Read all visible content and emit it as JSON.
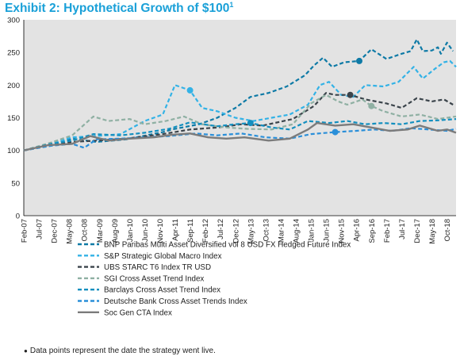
{
  "title": {
    "main": "Exhibit 2: Hypothetical Growth of $100",
    "sup": "1"
  },
  "footnote": "Data points represent the date the strategy went live.",
  "chart_data": {
    "type": "line",
    "grid": false,
    "background": "#e3e3e3",
    "ylim": [
      0,
      300
    ],
    "yticks": [
      0,
      50,
      100,
      150,
      200,
      250,
      300
    ],
    "x_start": "Feb-07",
    "x_end": "Jan-19",
    "xticks": [
      "Feb-07",
      "Jul-07",
      "Dec-07",
      "May-08",
      "Oct-08",
      "Mar-09",
      "Aug-09",
      "Jan-10",
      "Jun-10",
      "Nov-10",
      "Apr-11",
      "Sep-11",
      "Feb-12",
      "Jul-12",
      "Dec-12",
      "May-13",
      "Oct-13",
      "Mar-14",
      "Aug-14",
      "Jan-15",
      "Jun-15",
      "Nov-15",
      "Apr-16",
      "Sep-16",
      "Feb-17",
      "Jul-17",
      "Dec-17",
      "May-18",
      "Oct-18"
    ],
    "legend_position": "bottom",
    "series": [
      {
        "name": "BNP Paribas Multi Asset Diversified vol 8 USD FX Hedged Future Index",
        "color": "#0e7aa6",
        "dash": true,
        "live": "May-16",
        "points": [
          [
            "Feb-07",
            100
          ],
          [
            "Oct-07",
            108
          ],
          [
            "Jun-08",
            118
          ],
          [
            "Feb-09",
            113
          ],
          [
            "Dec-09",
            117
          ],
          [
            "Dec-10",
            128
          ],
          [
            "Mar-11",
            132
          ],
          [
            "Dec-11",
            140
          ],
          [
            "Jun-12",
            150
          ],
          [
            "Dec-12",
            165
          ],
          [
            "May-13",
            182
          ],
          [
            "Nov-13",
            188
          ],
          [
            "May-14",
            198
          ],
          [
            "Nov-14",
            215
          ],
          [
            "Feb-15",
            230
          ],
          [
            "May-15",
            242
          ],
          [
            "Aug-15",
            228
          ],
          [
            "Dec-15",
            235
          ],
          [
            "May-16",
            237
          ],
          [
            "Sep-16",
            255
          ],
          [
            "Feb-17",
            240
          ],
          [
            "Jul-17",
            248
          ],
          [
            "Oct-17",
            252
          ],
          [
            "Dec-17",
            270
          ],
          [
            "Feb-18",
            252
          ],
          [
            "May-18",
            253
          ],
          [
            "Jul-18",
            258
          ],
          [
            "Aug-18",
            248
          ],
          [
            "Oct-18",
            265
          ],
          [
            "Dec-18",
            252
          ]
        ]
      },
      {
        "name": "S&P Strategic Global Macro Index",
        "color": "#33b2e6",
        "dash": true,
        "live": "Sep-11",
        "points": [
          [
            "Feb-07",
            100
          ],
          [
            "Nov-07",
            110
          ],
          [
            "Jun-08",
            120
          ],
          [
            "Feb-09",
            122
          ],
          [
            "Oct-09",
            125
          ],
          [
            "Jun-10",
            145
          ],
          [
            "Dec-10",
            155
          ],
          [
            "Apr-11",
            200
          ],
          [
            "Sep-11",
            192
          ],
          [
            "Jan-12",
            165
          ],
          [
            "Jun-12",
            160
          ],
          [
            "Dec-12",
            150
          ],
          [
            "Jun-13",
            145
          ],
          [
            "Dec-13",
            150
          ],
          [
            "Jun-14",
            155
          ],
          [
            "Dec-14",
            170
          ],
          [
            "Apr-15",
            200
          ],
          [
            "Jul-15",
            205
          ],
          [
            "Nov-15",
            185
          ],
          [
            "Mar-16",
            182
          ],
          [
            "Jul-16",
            200
          ],
          [
            "Jan-17",
            198
          ],
          [
            "Jun-17",
            205
          ],
          [
            "Nov-17",
            228
          ],
          [
            "Feb-18",
            210
          ],
          [
            "Jun-18",
            225
          ],
          [
            "Sep-18",
            235
          ],
          [
            "Nov-18",
            237
          ],
          [
            "Jan-19",
            228
          ]
        ]
      },
      {
        "name": "UBS STARC T6 Index TR USD",
        "color": "#3b444b",
        "dash": true,
        "live": "Feb-16",
        "points": [
          [
            "Feb-07",
            100
          ],
          [
            "Nov-07",
            108
          ],
          [
            "Jun-08",
            113
          ],
          [
            "Feb-09",
            115
          ],
          [
            "Dec-09",
            118
          ],
          [
            "Dec-10",
            125
          ],
          [
            "Sep-11",
            132
          ],
          [
            "Jun-12",
            135
          ],
          [
            "Feb-13",
            140
          ],
          [
            "Sep-13",
            138
          ],
          [
            "Jul-14",
            148
          ],
          [
            "Feb-15",
            168
          ],
          [
            "Jun-15",
            188
          ],
          [
            "Sep-15",
            185
          ],
          [
            "Feb-16",
            185
          ],
          [
            "Jul-16",
            178
          ],
          [
            "Feb-17",
            172
          ],
          [
            "Jul-17",
            165
          ],
          [
            "Dec-17",
            180
          ],
          [
            "May-18",
            175
          ],
          [
            "Sep-18",
            178
          ],
          [
            "Dec-18",
            170
          ]
        ]
      },
      {
        "name": "SGI Cross Asset Trend Index",
        "color": "#8fb0a3",
        "dash": true,
        "live": "Sep-16",
        "points": [
          [
            "Feb-07",
            100
          ],
          [
            "Nov-07",
            112
          ],
          [
            "Jun-08",
            123
          ],
          [
            "Jan-09",
            152
          ],
          [
            "Jun-09",
            145
          ],
          [
            "Jan-10",
            148
          ],
          [
            "Jun-10",
            140
          ],
          [
            "Jan-11",
            145
          ],
          [
            "Jul-11",
            152
          ],
          [
            "Jan-12",
            140
          ],
          [
            "Sep-12",
            135
          ],
          [
            "Apr-13",
            133
          ],
          [
            "Dec-13",
            132
          ],
          [
            "Jul-14",
            140
          ],
          [
            "Jan-15",
            172
          ],
          [
            "Jun-15",
            185
          ],
          [
            "Oct-15",
            175
          ],
          [
            "Jan-16",
            170
          ],
          [
            "Jun-16",
            178
          ],
          [
            "Sep-16",
            168
          ],
          [
            "Jan-17",
            160
          ],
          [
            "Jul-17",
            152
          ],
          [
            "Jan-18",
            155
          ],
          [
            "Jul-18",
            148
          ],
          [
            "Jan-19",
            152
          ]
        ]
      },
      {
        "name": "Barclays Cross Asset Trend Index",
        "color": "#138fbf",
        "dash": true,
        "live": "May-13",
        "points": [
          [
            "Feb-07",
            100
          ],
          [
            "Nov-07",
            110
          ],
          [
            "Jun-08",
            115
          ],
          [
            "Jan-09",
            125
          ],
          [
            "Oct-09",
            123
          ],
          [
            "Jun-10",
            127
          ],
          [
            "Feb-11",
            133
          ],
          [
            "Sep-11",
            143
          ],
          [
            "Jun-12",
            137
          ],
          [
            "Dec-12",
            140
          ],
          [
            "May-13",
            142
          ],
          [
            "Dec-13",
            135
          ],
          [
            "Jun-14",
            132
          ],
          [
            "Dec-14",
            145
          ],
          [
            "Jul-15",
            142
          ],
          [
            "Jan-16",
            145
          ],
          [
            "Jul-16",
            140
          ],
          [
            "Jan-17",
            142
          ],
          [
            "Jul-17",
            140
          ],
          [
            "Jan-18",
            145
          ],
          [
            "Jul-18",
            146
          ],
          [
            "Jan-19",
            148
          ]
        ]
      },
      {
        "name": "Deutsche Bank Cross Asset Trends Index",
        "color": "#2a8fd9",
        "dash": true,
        "live": "Sep-15",
        "points": [
          [
            "Feb-07",
            100
          ],
          [
            "Nov-07",
            107
          ],
          [
            "Jun-08",
            110
          ],
          [
            "Oct-08",
            104
          ],
          [
            "Feb-09",
            117
          ],
          [
            "Oct-09",
            118
          ],
          [
            "Jun-10",
            120
          ],
          [
            "Feb-11",
            122
          ],
          [
            "Nov-11",
            126
          ],
          [
            "Jun-12",
            123
          ],
          [
            "Feb-13",
            126
          ],
          [
            "Oct-13",
            120
          ],
          [
            "Jun-14",
            118
          ],
          [
            "Jan-15",
            125
          ],
          [
            "Sep-15",
            128
          ],
          [
            "Apr-16",
            130
          ],
          [
            "Oct-16",
            132
          ],
          [
            "Apr-17",
            130
          ],
          [
            "Oct-17",
            134
          ],
          [
            "Apr-18",
            132
          ],
          [
            "Oct-18",
            130
          ],
          [
            "Jan-19",
            133
          ]
        ]
      },
      {
        "name": "Soc Gen CTA Index",
        "color": "#7b7b7b",
        "dash": false,
        "live": null,
        "points": [
          [
            "Feb-07",
            100
          ],
          [
            "Oct-07",
            108
          ],
          [
            "Jun-08",
            110
          ],
          [
            "Dec-08",
            122
          ],
          [
            "Jun-09",
            115
          ],
          [
            "Jan-10",
            118
          ],
          [
            "Sep-10",
            120
          ],
          [
            "Mar-11",
            124
          ],
          [
            "Sep-11",
            126
          ],
          [
            "Mar-12",
            120
          ],
          [
            "Sep-12",
            118
          ],
          [
            "Mar-13",
            120
          ],
          [
            "Nov-13",
            115
          ],
          [
            "Jun-14",
            118
          ],
          [
            "Dec-14",
            132
          ],
          [
            "Mar-15",
            142
          ],
          [
            "Sep-15",
            138
          ],
          [
            "Mar-16",
            140
          ],
          [
            "Sep-16",
            135
          ],
          [
            "Mar-17",
            130
          ],
          [
            "Sep-17",
            132
          ],
          [
            "Jan-18",
            138
          ],
          [
            "Jul-18",
            130
          ],
          [
            "Oct-18",
            132
          ],
          [
            "Jan-19",
            127
          ]
        ]
      }
    ]
  }
}
